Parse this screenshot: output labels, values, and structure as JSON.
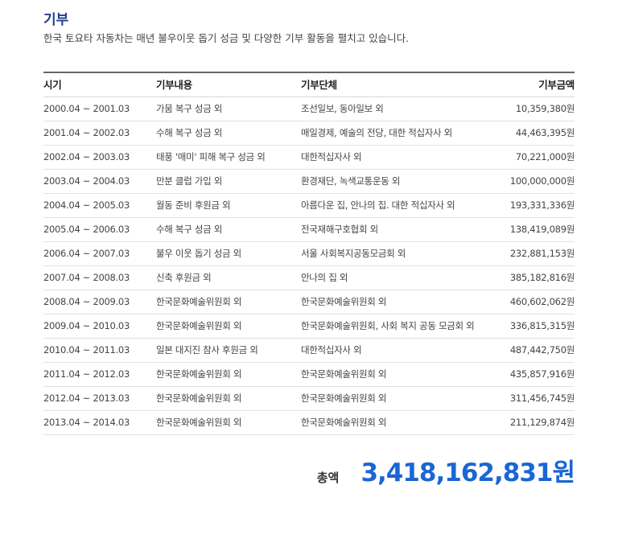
{
  "section": {
    "title": "기부",
    "description": "한국 토요타 자동차는 매년 불우이웃 돕기 성금 및 다양한 기부 활동을 펼치고 있습니다."
  },
  "table": {
    "headers": {
      "period": "시기",
      "content": "기부내용",
      "org": "기부단체",
      "amount": "기부금액"
    },
    "rows": [
      {
        "period": "2000.04 ~ 2001.03",
        "content": "가뭄 복구 성금 외",
        "org": "조선일보, 동아일보 외",
        "amount": "10,359,380원"
      },
      {
        "period": "2001.04 ~ 2002.03",
        "content": "수해 복구 성금 외",
        "org": "매일경제, 예술의 전당, 대한 적십자사 외",
        "amount": "44,463,395원"
      },
      {
        "period": "2002.04 ~ 2003.03",
        "content": "태풍 '매미' 피해 복구 성금 외",
        "org": "대한적십자사 외",
        "amount": "70,221,000원"
      },
      {
        "period": "2003.04 ~ 2004.03",
        "content": "만분 클럽 가입 외",
        "org": "환경재단, 녹색교통운동 외",
        "amount": "100,000,000원"
      },
      {
        "period": "2004.04 ~ 2005.03",
        "content": "월동 준비 후원금 외",
        "org": "아름다운 집, 안나의 집. 대한 적십자사 외",
        "amount": "193,331,336원"
      },
      {
        "period": "2005.04 ~ 2006.03",
        "content": "수해 복구 성금 외",
        "org": "전국재해구호협회 외",
        "amount": "138,419,089원"
      },
      {
        "period": "2006.04 ~ 2007.03",
        "content": "불우 이웃 돕기 성금 외",
        "org": "서울 사회복지공동모금회 외",
        "amount": "232,881,153원"
      },
      {
        "period": "2007.04 ~ 2008.03",
        "content": "신축 후원금 외",
        "org": "안나의 집 외",
        "amount": "385,182,816원"
      },
      {
        "period": "2008.04 ~ 2009.03",
        "content": "한국문화예술위원회 외",
        "org": "한국문화예술위원회 외",
        "amount": "460,602,062원"
      },
      {
        "period": "2009.04 ~ 2010.03",
        "content": "한국문화예술위원회  외",
        "org": "한국문화예술위원회, 사회 복지 공동 모금회 외",
        "amount": "336,815,315원"
      },
      {
        "period": "2010.04 ~ 2011.03",
        "content": "일본 대지진 참사 후원금 외",
        "org": "대한적십자사 외",
        "amount": "487,442,750원"
      },
      {
        "period": "2011.04 ~ 2012.03",
        "content": "한국문화예술위원회 외",
        "org": "한국문화예술위원회 외",
        "amount": "435,857,916원"
      },
      {
        "period": "2012.04 ~ 2013.03",
        "content": "한국문화예술위원회 외",
        "org": "한국문화예술위원회 외",
        "amount": "311,456,745원"
      },
      {
        "period": "2013.04 ~ 2014.03",
        "content": "한국문화예술위원회 외",
        "org": "한국문화예술위원회 외",
        "amount": "211,129,874원"
      }
    ]
  },
  "total": {
    "label": "총액",
    "value": "3,418,162,831원"
  },
  "colors": {
    "title": "#1f3f93",
    "total_value": "#1a66d4"
  }
}
